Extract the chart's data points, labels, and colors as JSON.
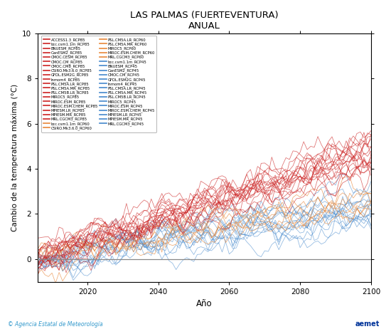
{
  "title": "LAS PALMAS (FUERTEVENTURA)",
  "subtitle": "ANUAL",
  "xlabel": "Año",
  "ylabel": "Cambio de la temperatura máxima (°C)",
  "xlim": [
    2006,
    2100
  ],
  "ylim": [
    -1,
    10
  ],
  "yticks": [
    0,
    2,
    4,
    6,
    8,
    10
  ],
  "xticks": [
    2020,
    2040,
    2060,
    2080,
    2100
  ],
  "rcp85_color": "#CC2222",
  "rcp60_color": "#E8883A",
  "rcp45_color": "#4488CC",
  "zero_line_color": "#888888",
  "legend_rcp85_left": [
    "ACCESS1.3_RCP85",
    "bcc.csm1.1m_RCP85",
    "BNUESM_RCP85",
    "CanESM2_RCP85",
    "CMOC.CESM_RCP85",
    "CMOC.CM_RCP85",
    "CMOC.CM8_RCP85",
    "CSIRO.Mk3.6.0_RCP85",
    "GFDL.ESM2G_RCP85",
    "Inmom4_RCP85",
    "PSL.CM5A.LR_RCP85",
    "PSL.CM5A.MR_RCP85",
    "PSL.CM5B.LR_RCP85",
    "MIROC5_RCP85",
    "MIROC.ESM_RCP85",
    "MIROC.ESM.CHEM_RCP85",
    "MPIESM.LR_RCP85",
    "MPIESM.MR_RCP85",
    "MRL.CGCM3_RCP85",
    "bcc.csm1.1m_RCP60",
    "CSIRO.Mk3.6.0_RCP60"
  ],
  "legend_left_colors": [
    "#CC2222",
    "#CC2222",
    "#CC2222",
    "#CC2222",
    "#CC2222",
    "#CC2222",
    "#CC2222",
    "#CC2222",
    "#CC2222",
    "#CC2222",
    "#CC2222",
    "#CC2222",
    "#CC2222",
    "#CC2222",
    "#CC2222",
    "#CC2222",
    "#CC2222",
    "#CC2222",
    "#CC2222",
    "#E8883A",
    "#E8883A"
  ],
  "legend_right": [
    "PSL.CM5A.LR_RCP60",
    "PSL.CM5A.MR_RCP60",
    "MIROC5_RCP60",
    "MIROC.ESM.CHEM_RCP60",
    "MRL.CGCM3_RCP60",
    "bcc.csm1.1m_RCP45",
    "BNUESM_RCP45",
    "CanESM2_RCP45",
    "CMOC.CM_RCP45",
    "GFDL.ESM2G_RCP45",
    "Inmom4_RCP45",
    "PSL.CM5A.LR_RCP45",
    "PSL.CM5A.MR_RCP45",
    "PSL.CM5B.LR_RCP45",
    "MIROC5_RCP45",
    "MIROC.ESM_RCP45",
    "MIROC.ESM.CHEM_RCP45",
    "MPIESM.LR_RCP45",
    "MPIESM.MR_RCP45",
    "MRL.CGCM3_RCP45"
  ],
  "legend_right_colors": [
    "#E8883A",
    "#E8883A",
    "#E8883A",
    "#E8883A",
    "#E8883A",
    "#4488CC",
    "#4488CC",
    "#4488CC",
    "#4488CC",
    "#4488CC",
    "#4488CC",
    "#4488CC",
    "#4488CC",
    "#4488CC",
    "#4488CC",
    "#4488CC",
    "#4488CC",
    "#4488CC",
    "#4488CC",
    "#4488CC"
  ],
  "footer_left": "© Agencia Estatal de Meteorología",
  "footer_left_color": "#3399CC",
  "n_rcp85": 19,
  "n_rcp60": 7,
  "n_rcp45": 15
}
